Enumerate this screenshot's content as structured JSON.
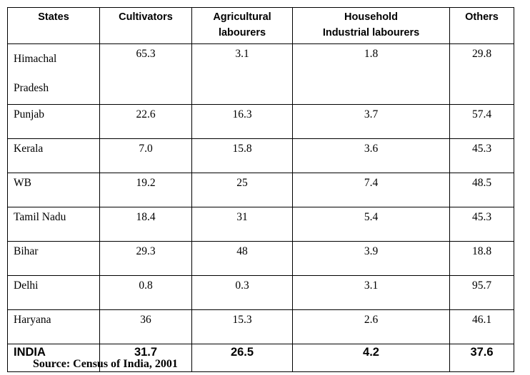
{
  "table": {
    "headers": [
      "States",
      "Cultivators",
      "Agricultural labourers",
      "Household Industrial labourers",
      "Others"
    ],
    "header_lines": [
      [
        "States"
      ],
      [
        "Cultivators"
      ],
      [
        "Agricultural",
        "labourers"
      ],
      [
        "Household",
        "Industrial labourers"
      ],
      [
        "Others"
      ]
    ],
    "rows": [
      {
        "state": "Himachal Pradesh",
        "state_lines": [
          "Himachal",
          "Pradesh"
        ],
        "cultivators": "65.3",
        "agricultural": "3.1",
        "household": "1.8",
        "others": "29.8"
      },
      {
        "state": "Punjab",
        "cultivators": "22.6",
        "agricultural": "16.3",
        "household": "3.7",
        "others": "57.4"
      },
      {
        "state": "Kerala",
        "cultivators": "7.0",
        "agricultural": "15.8",
        "household": "3.6",
        "others": "45.3"
      },
      {
        "state": "WB",
        "cultivators": "19.2",
        "agricultural": "25",
        "household": "7.4",
        "others": "48.5"
      },
      {
        "state": "Tamil Nadu",
        "cultivators": "18.4",
        "agricultural": "31",
        "household": "5.4",
        "others": "45.3"
      },
      {
        "state": "Bihar",
        "cultivators": "29.3",
        "agricultural": "48",
        "household": "3.9",
        "others": "18.8"
      },
      {
        "state": "Delhi",
        "cultivators": "0.8",
        "agricultural": "0.3",
        "household": "3.1",
        "others": "95.7"
      },
      {
        "state": "Haryana",
        "cultivators": "36",
        "agricultural": "15.3",
        "household": "2.6",
        "others": "46.1"
      }
    ],
    "total": {
      "state": "INDIA",
      "cultivators": "31.7",
      "agricultural": "26.5",
      "household": "4.2",
      "others": "37.6"
    }
  },
  "source": "Source: Census of India, 2001"
}
